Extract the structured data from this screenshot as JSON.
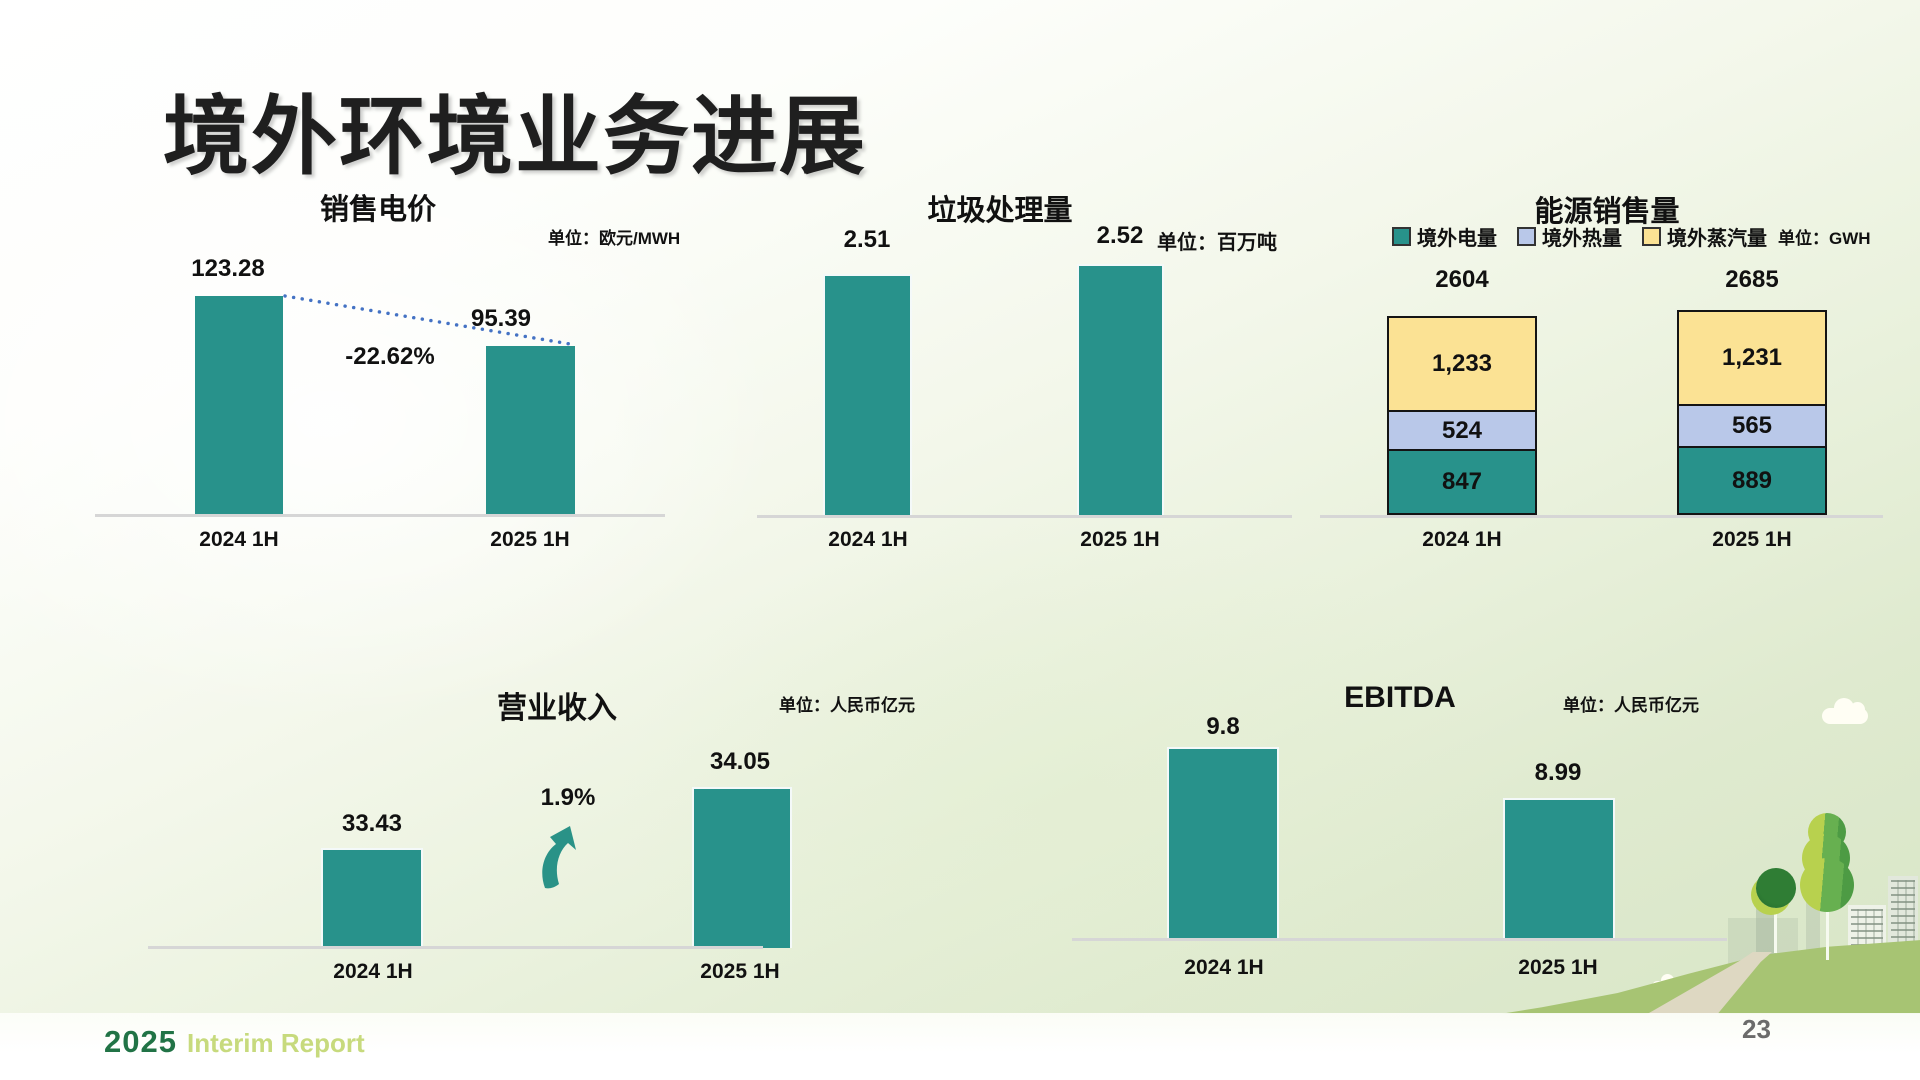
{
  "slide": {
    "title": "境外环境业务进展",
    "page_number": "23",
    "footer_year": "2025",
    "footer_text": "Interim Report"
  },
  "colors": {
    "bar_teal": "#28928B",
    "heat_blue": "#B9C8E9",
    "steam_yellow": "#FBE294",
    "dotted_line": "#4472C4",
    "arrow_teal": "#2A9287",
    "footer_green": "#217346",
    "footer_yellow_green": "#C7DA7D"
  },
  "chart_data": [
    {
      "id": "electricity_price",
      "type": "bar",
      "title": "销售电价",
      "unit_label": "单位：欧元/MWH",
      "categories": [
        "2024 1H",
        "2025 1H"
      ],
      "values": [
        123.28,
        95.39
      ],
      "values_display": [
        "123.28",
        "95.39"
      ],
      "change_label": "-22.62%",
      "bar_color": "#28928B",
      "ylim": [
        0,
        140
      ],
      "grid": false,
      "annotation": "dotted decline line between bar tops"
    },
    {
      "id": "waste_volume",
      "type": "bar",
      "title": "垃圾处理量",
      "unit_label": "单位：百万吨",
      "categories": [
        "2024 1H",
        "2025 1H"
      ],
      "values": [
        2.51,
        2.52
      ],
      "values_display": [
        "2.51",
        "2.52"
      ],
      "bar_color": "#28928B",
      "grid": false
    },
    {
      "id": "energy_sales",
      "type": "stacked-bar",
      "title": "能源销售量",
      "unit_label": "单位：GWH",
      "categories": [
        "2024 1H",
        "2025 1H"
      ],
      "totals": [
        2604,
        2685
      ],
      "totals_display": [
        "2604",
        "2685"
      ],
      "legend_position": "top",
      "series": [
        {
          "name": "境外电量",
          "color": "#28928B",
          "values": [
            847,
            889
          ],
          "values_display": [
            "847",
            "889"
          ]
        },
        {
          "name": "境外热量",
          "color": "#B9C8E9",
          "values": [
            524,
            565
          ],
          "values_display": [
            "524",
            "565"
          ]
        },
        {
          "name": "境外蒸汽量",
          "color": "#FBE294",
          "values": [
            1233,
            1231
          ],
          "values_display": [
            "1,233",
            "1,231"
          ]
        }
      ]
    },
    {
      "id": "revenue",
      "type": "bar",
      "title": "营业收入",
      "unit_label": "单位：人民币亿元",
      "categories": [
        "2024 1H",
        "2025 1H"
      ],
      "values": [
        33.43,
        34.05
      ],
      "values_display": [
        "33.43",
        "34.05"
      ],
      "change_label": "1.9%",
      "bar_color": "#28928B",
      "annotation": "curved up arrow",
      "grid": false
    },
    {
      "id": "ebitda",
      "type": "bar",
      "title": "EBITDA",
      "unit_label": "单位：人民币亿元",
      "categories": [
        "2024 1H",
        "2025 1H"
      ],
      "values": [
        9.8,
        8.99
      ],
      "values_display": [
        "9.8",
        "8.99"
      ],
      "bar_color": "#28928B",
      "grid": false
    }
  ]
}
